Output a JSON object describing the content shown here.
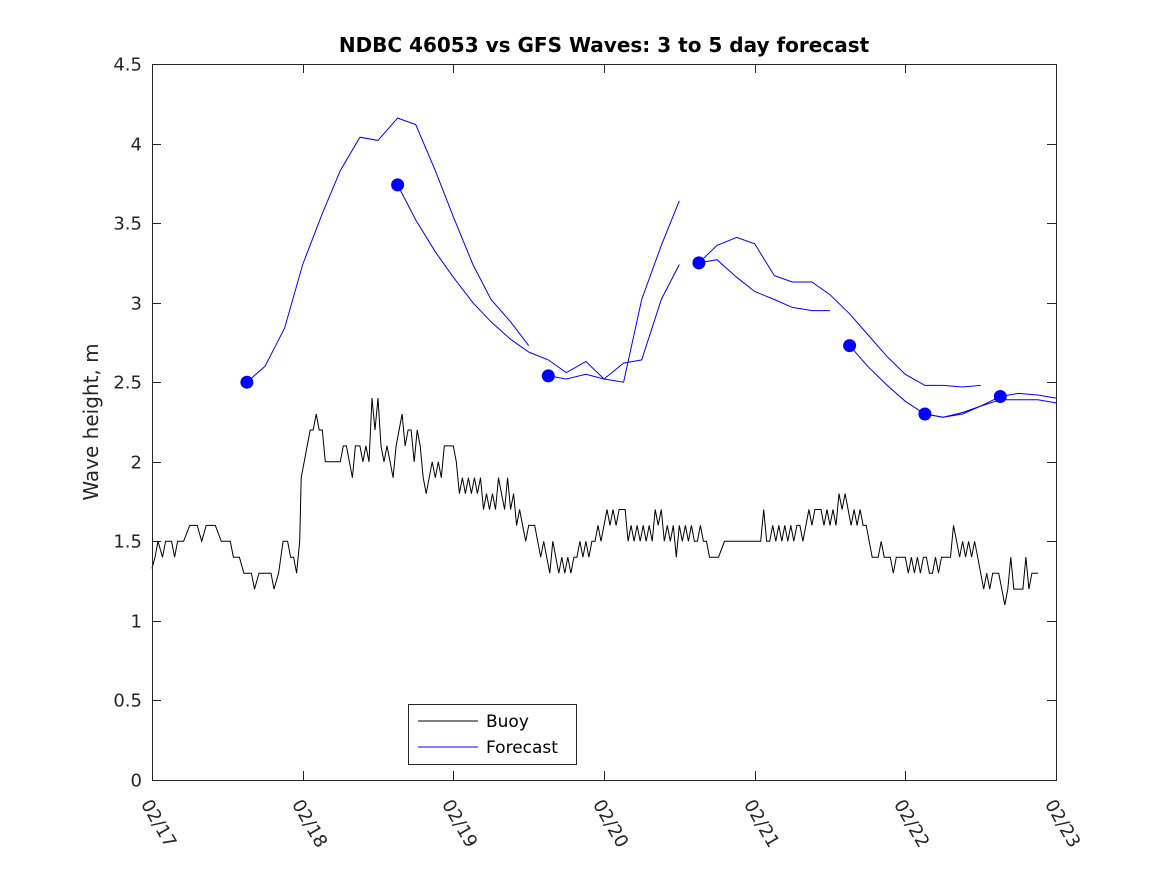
{
  "chart_data": {
    "type": "line",
    "title": "NDBC 46053 vs GFS Waves: 3 to 5 day forecast",
    "xlabel": "",
    "ylabel": "Wave height, m",
    "xlim": [
      0,
      6
    ],
    "ylim": [
      0,
      4.5
    ],
    "xticks": [
      {
        "value": 0,
        "label": "02/17"
      },
      {
        "value": 1,
        "label": "02/18"
      },
      {
        "value": 2,
        "label": "02/19"
      },
      {
        "value": 3,
        "label": "02/20"
      },
      {
        "value": 4,
        "label": "02/21"
      },
      {
        "value": 5,
        "label": "02/22"
      },
      {
        "value": 6,
        "label": "02/23"
      }
    ],
    "yticks": [
      {
        "value": 0,
        "label": "0"
      },
      {
        "value": 0.5,
        "label": "0.5"
      },
      {
        "value": 1,
        "label": "1"
      },
      {
        "value": 1.5,
        "label": "1.5"
      },
      {
        "value": 2,
        "label": "2"
      },
      {
        "value": 2.5,
        "label": "2.5"
      },
      {
        "value": 3,
        "label": "3"
      },
      {
        "value": 3.5,
        "label": "3.5"
      },
      {
        "value": 4,
        "label": "4"
      },
      {
        "value": 4.5,
        "label": "4.5"
      }
    ],
    "legend": {
      "position": "bottom-left",
      "entries": [
        {
          "label": "Buoy",
          "color": "#000000"
        },
        {
          "label": "Forecast",
          "color": "#0000ff"
        }
      ]
    },
    "buoy": {
      "name": "Buoy",
      "color": "#000000",
      "points": [
        [
          0.0,
          1.33
        ],
        [
          0.02,
          1.4
        ],
        [
          0.04,
          1.5
        ],
        [
          0.07,
          1.4
        ],
        [
          0.09,
          1.5
        ],
        [
          0.13,
          1.5
        ],
        [
          0.15,
          1.4
        ],
        [
          0.17,
          1.5
        ],
        [
          0.21,
          1.5
        ],
        [
          0.25,
          1.6
        ],
        [
          0.3,
          1.6
        ],
        [
          0.33,
          1.5
        ],
        [
          0.36,
          1.6
        ],
        [
          0.42,
          1.6
        ],
        [
          0.46,
          1.5
        ],
        [
          0.52,
          1.5
        ],
        [
          0.54,
          1.4
        ],
        [
          0.58,
          1.4
        ],
        [
          0.61,
          1.3
        ],
        [
          0.66,
          1.3
        ],
        [
          0.68,
          1.2
        ],
        [
          0.71,
          1.3
        ],
        [
          0.79,
          1.3
        ],
        [
          0.81,
          1.2
        ],
        [
          0.84,
          1.3
        ],
        [
          0.87,
          1.5
        ],
        [
          0.9,
          1.5
        ],
        [
          0.92,
          1.4
        ],
        [
          0.94,
          1.4
        ],
        [
          0.96,
          1.3
        ],
        [
          0.98,
          1.5
        ],
        [
          0.99,
          1.9
        ],
        [
          1.01,
          2.0
        ],
        [
          1.03,
          2.1
        ],
        [
          1.05,
          2.2
        ],
        [
          1.07,
          2.2
        ],
        [
          1.09,
          2.3
        ],
        [
          1.11,
          2.2
        ],
        [
          1.13,
          2.2
        ],
        [
          1.15,
          2.0
        ],
        [
          1.25,
          2.0
        ],
        [
          1.27,
          2.1
        ],
        [
          1.29,
          2.1
        ],
        [
          1.31,
          2.0
        ],
        [
          1.33,
          1.9
        ],
        [
          1.35,
          2.1
        ],
        [
          1.38,
          2.1
        ],
        [
          1.4,
          2.0
        ],
        [
          1.42,
          2.1
        ],
        [
          1.44,
          2.0
        ],
        [
          1.46,
          2.4
        ],
        [
          1.48,
          2.2
        ],
        [
          1.5,
          2.4
        ],
        [
          1.52,
          2.1
        ],
        [
          1.54,
          2.0
        ],
        [
          1.56,
          2.1
        ],
        [
          1.58,
          2.0
        ],
        [
          1.6,
          1.9
        ],
        [
          1.62,
          2.1
        ],
        [
          1.64,
          2.2
        ],
        [
          1.66,
          2.3
        ],
        [
          1.68,
          2.1
        ],
        [
          1.7,
          2.2
        ],
        [
          1.72,
          2.2
        ],
        [
          1.74,
          2.0
        ],
        [
          1.76,
          2.2
        ],
        [
          1.78,
          2.1
        ],
        [
          1.8,
          1.9
        ],
        [
          1.82,
          1.8
        ],
        [
          1.84,
          1.9
        ],
        [
          1.86,
          2.0
        ],
        [
          1.88,
          1.9
        ],
        [
          1.9,
          2.0
        ],
        [
          1.92,
          1.9
        ],
        [
          1.94,
          2.1
        ],
        [
          2.0,
          2.1
        ],
        [
          2.02,
          2.0
        ],
        [
          2.04,
          1.8
        ],
        [
          2.06,
          1.9
        ],
        [
          2.08,
          1.8
        ],
        [
          2.1,
          1.9
        ],
        [
          2.12,
          1.8
        ],
        [
          2.14,
          1.9
        ],
        [
          2.16,
          1.8
        ],
        [
          2.18,
          1.9
        ],
        [
          2.2,
          1.7
        ],
        [
          2.22,
          1.8
        ],
        [
          2.24,
          1.7
        ],
        [
          2.26,
          1.8
        ],
        [
          2.28,
          1.7
        ],
        [
          2.3,
          1.9
        ],
        [
          2.32,
          1.8
        ],
        [
          2.34,
          1.7
        ],
        [
          2.36,
          1.9
        ],
        [
          2.38,
          1.7
        ],
        [
          2.4,
          1.8
        ],
        [
          2.42,
          1.6
        ],
        [
          2.44,
          1.7
        ],
        [
          2.46,
          1.6
        ],
        [
          2.48,
          1.5
        ],
        [
          2.5,
          1.6
        ],
        [
          2.54,
          1.6
        ],
        [
          2.56,
          1.5
        ],
        [
          2.58,
          1.4
        ],
        [
          2.6,
          1.5
        ],
        [
          2.62,
          1.4
        ],
        [
          2.64,
          1.3
        ],
        [
          2.66,
          1.5
        ],
        [
          2.68,
          1.4
        ],
        [
          2.7,
          1.3
        ],
        [
          2.72,
          1.4
        ],
        [
          2.74,
          1.3
        ],
        [
          2.76,
          1.4
        ],
        [
          2.78,
          1.3
        ],
        [
          2.8,
          1.4
        ],
        [
          2.82,
          1.4
        ],
        [
          2.84,
          1.5
        ],
        [
          2.86,
          1.4
        ],
        [
          2.88,
          1.5
        ],
        [
          2.9,
          1.4
        ],
        [
          2.92,
          1.5
        ],
        [
          2.94,
          1.5
        ],
        [
          2.96,
          1.6
        ],
        [
          2.98,
          1.5
        ],
        [
          3.0,
          1.6
        ],
        [
          3.02,
          1.7
        ],
        [
          3.04,
          1.6
        ],
        [
          3.06,
          1.7
        ],
        [
          3.08,
          1.6
        ],
        [
          3.1,
          1.7
        ],
        [
          3.14,
          1.7
        ],
        [
          3.16,
          1.5
        ],
        [
          3.18,
          1.6
        ],
        [
          3.2,
          1.5
        ],
        [
          3.22,
          1.6
        ],
        [
          3.24,
          1.5
        ],
        [
          3.26,
          1.6
        ],
        [
          3.28,
          1.5
        ],
        [
          3.3,
          1.6
        ],
        [
          3.32,
          1.5
        ],
        [
          3.34,
          1.7
        ],
        [
          3.36,
          1.6
        ],
        [
          3.38,
          1.7
        ],
        [
          3.4,
          1.5
        ],
        [
          3.42,
          1.6
        ],
        [
          3.44,
          1.5
        ],
        [
          3.46,
          1.6
        ],
        [
          3.48,
          1.4
        ],
        [
          3.5,
          1.6
        ],
        [
          3.52,
          1.5
        ],
        [
          3.54,
          1.6
        ],
        [
          3.56,
          1.5
        ],
        [
          3.58,
          1.6
        ],
        [
          3.6,
          1.5
        ],
        [
          3.62,
          1.5
        ],
        [
          3.64,
          1.6
        ],
        [
          3.66,
          1.5
        ],
        [
          3.68,
          1.5
        ],
        [
          3.7,
          1.4
        ],
        [
          3.74,
          1.4
        ],
        [
          3.76,
          1.4
        ],
        [
          3.8,
          1.5
        ],
        [
          4.04,
          1.5
        ],
        [
          4.06,
          1.7
        ],
        [
          4.08,
          1.5
        ],
        [
          4.1,
          1.5
        ],
        [
          4.12,
          1.6
        ],
        [
          4.14,
          1.5
        ],
        [
          4.16,
          1.6
        ],
        [
          4.18,
          1.5
        ],
        [
          4.2,
          1.6
        ],
        [
          4.22,
          1.5
        ],
        [
          4.24,
          1.6
        ],
        [
          4.26,
          1.5
        ],
        [
          4.28,
          1.6
        ],
        [
          4.3,
          1.6
        ],
        [
          4.32,
          1.5
        ],
        [
          4.34,
          1.6
        ],
        [
          4.36,
          1.7
        ],
        [
          4.38,
          1.6
        ],
        [
          4.4,
          1.7
        ],
        [
          4.44,
          1.7
        ],
        [
          4.46,
          1.6
        ],
        [
          4.48,
          1.7
        ],
        [
          4.5,
          1.6
        ],
        [
          4.52,
          1.7
        ],
        [
          4.54,
          1.6
        ],
        [
          4.56,
          1.8
        ],
        [
          4.58,
          1.7
        ],
        [
          4.6,
          1.8
        ],
        [
          4.62,
          1.7
        ],
        [
          4.64,
          1.6
        ],
        [
          4.66,
          1.7
        ],
        [
          4.68,
          1.6
        ],
        [
          4.7,
          1.7
        ],
        [
          4.72,
          1.6
        ],
        [
          4.74,
          1.6
        ],
        [
          4.76,
          1.5
        ],
        [
          4.78,
          1.4
        ],
        [
          4.82,
          1.4
        ],
        [
          4.84,
          1.5
        ],
        [
          4.86,
          1.4
        ],
        [
          4.88,
          1.4
        ],
        [
          4.9,
          1.4
        ],
        [
          4.92,
          1.3
        ],
        [
          4.94,
          1.4
        ],
        [
          4.98,
          1.4
        ],
        [
          5.0,
          1.4
        ],
        [
          5.02,
          1.3
        ],
        [
          5.04,
          1.4
        ],
        [
          5.06,
          1.3
        ],
        [
          5.08,
          1.4
        ],
        [
          5.1,
          1.3
        ],
        [
          5.12,
          1.4
        ],
        [
          5.14,
          1.4
        ],
        [
          5.16,
          1.3
        ],
        [
          5.18,
          1.3
        ],
        [
          5.2,
          1.4
        ],
        [
          5.22,
          1.3
        ],
        [
          5.24,
          1.4
        ],
        [
          5.26,
          1.4
        ],
        [
          5.28,
          1.4
        ],
        [
          5.3,
          1.4
        ],
        [
          5.32,
          1.6
        ],
        [
          5.34,
          1.5
        ],
        [
          5.36,
          1.4
        ],
        [
          5.38,
          1.5
        ],
        [
          5.4,
          1.4
        ],
        [
          5.42,
          1.5
        ],
        [
          5.44,
          1.4
        ],
        [
          5.46,
          1.5
        ],
        [
          5.48,
          1.4
        ],
        [
          5.5,
          1.3
        ],
        [
          5.52,
          1.2
        ],
        [
          5.54,
          1.3
        ],
        [
          5.56,
          1.2
        ],
        [
          5.58,
          1.3
        ],
        [
          5.6,
          1.3
        ],
        [
          5.62,
          1.3
        ],
        [
          5.64,
          1.2
        ],
        [
          5.66,
          1.1
        ],
        [
          5.68,
          1.2
        ],
        [
          5.7,
          1.4
        ],
        [
          5.72,
          1.2
        ],
        [
          5.78,
          1.2
        ],
        [
          5.8,
          1.4
        ],
        [
          5.82,
          1.2
        ],
        [
          5.84,
          1.3
        ],
        [
          5.88,
          1.3
        ]
      ]
    },
    "forecast": {
      "name": "Forecast",
      "color": "#0000ff",
      "marker_points": [
        [
          0.63,
          2.5
        ],
        [
          1.63,
          3.74
        ],
        [
          2.63,
          2.54
        ],
        [
          3.63,
          3.25
        ],
        [
          4.63,
          2.73
        ],
        [
          5.13,
          2.3
        ],
        [
          5.63,
          2.41
        ]
      ],
      "segments": [
        [
          [
            0.63,
            2.5
          ],
          [
            0.75,
            2.6
          ],
          [
            0.88,
            2.84
          ],
          [
            1.0,
            3.24
          ],
          [
            1.13,
            3.56
          ],
          [
            1.25,
            3.83
          ],
          [
            1.38,
            4.04
          ],
          [
            1.5,
            4.02
          ],
          [
            1.63,
            4.16
          ],
          [
            1.75,
            4.12
          ],
          [
            1.88,
            3.83
          ],
          [
            2.0,
            3.54
          ],
          [
            2.13,
            3.24
          ],
          [
            2.25,
            3.02
          ],
          [
            2.38,
            2.88
          ],
          [
            2.5,
            2.73
          ]
        ],
        [
          [
            1.63,
            3.74
          ],
          [
            1.75,
            3.52
          ],
          [
            1.88,
            3.32
          ],
          [
            2.0,
            3.16
          ],
          [
            2.13,
            3.0
          ],
          [
            2.25,
            2.88
          ],
          [
            2.38,
            2.77
          ],
          [
            2.5,
            2.69
          ],
          [
            2.63,
            2.64
          ],
          [
            2.75,
            2.56
          ],
          [
            2.88,
            2.63
          ],
          [
            3.0,
            2.52
          ],
          [
            3.13,
            2.62
          ],
          [
            3.25,
            2.64
          ],
          [
            3.38,
            3.02
          ],
          [
            3.5,
            3.24
          ]
        ],
        [
          [
            2.63,
            2.54
          ],
          [
            2.75,
            2.52
          ],
          [
            2.88,
            2.55
          ],
          [
            3.0,
            2.52
          ],
          [
            3.13,
            2.5
          ],
          [
            3.25,
            3.02
          ],
          [
            3.38,
            3.36
          ],
          [
            3.5,
            3.64
          ]
        ],
        [
          [
            3.63,
            3.25
          ],
          [
            3.75,
            3.27
          ],
          [
            3.88,
            3.16
          ],
          [
            4.0,
            3.07
          ],
          [
            4.13,
            3.02
          ],
          [
            4.25,
            2.97
          ],
          [
            4.38,
            2.95
          ],
          [
            4.5,
            2.95
          ]
        ],
        [
          [
            3.63,
            3.25
          ],
          [
            3.75,
            3.36
          ],
          [
            3.88,
            3.41
          ],
          [
            4.0,
            3.37
          ],
          [
            4.13,
            3.17
          ],
          [
            4.25,
            3.13
          ],
          [
            4.38,
            3.13
          ],
          [
            4.5,
            3.05
          ],
          [
            4.63,
            2.93
          ],
          [
            4.75,
            2.8
          ],
          [
            4.88,
            2.66
          ],
          [
            5.0,
            2.55
          ],
          [
            5.13,
            2.48
          ],
          [
            5.25,
            2.48
          ],
          [
            5.38,
            2.47
          ],
          [
            5.5,
            2.48
          ]
        ],
        [
          [
            4.63,
            2.73
          ],
          [
            4.75,
            2.6
          ],
          [
            4.88,
            2.48
          ],
          [
            5.0,
            2.38
          ],
          [
            5.13,
            2.3
          ],
          [
            5.25,
            2.28
          ],
          [
            5.38,
            2.31
          ],
          [
            5.5,
            2.35
          ],
          [
            5.63,
            2.39
          ],
          [
            5.75,
            2.39
          ],
          [
            5.88,
            2.39
          ],
          [
            6.0,
            2.37
          ]
        ],
        [
          [
            5.13,
            2.3
          ],
          [
            5.25,
            2.28
          ],
          [
            5.38,
            2.3
          ],
          [
            5.5,
            2.35
          ],
          [
            5.63,
            2.41
          ],
          [
            5.75,
            2.43
          ],
          [
            5.88,
            2.42
          ],
          [
            6.0,
            2.4
          ]
        ]
      ]
    }
  }
}
